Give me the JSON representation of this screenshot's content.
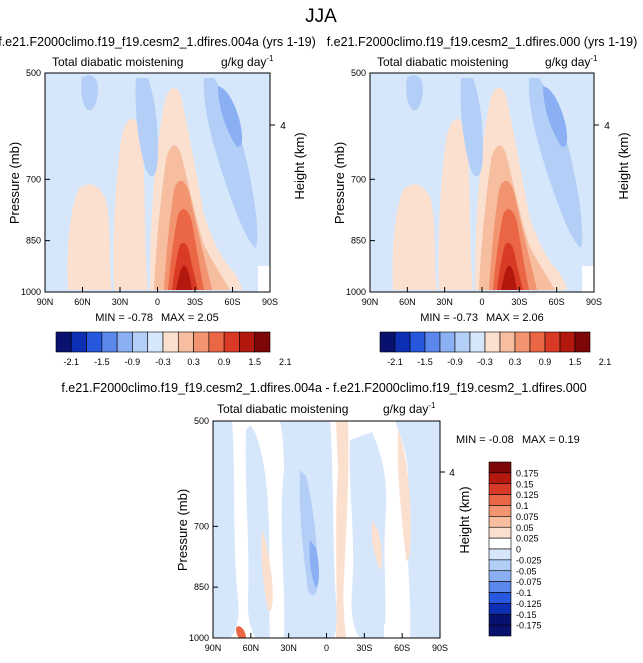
{
  "figure": {
    "main_title": "JJA",
    "colors": {
      "levels_main": [
        "#08126e",
        "#0c2fb4",
        "#2657dc",
        "#5b86ec",
        "#8aaff2",
        "#b3cff7",
        "#d6e7fb",
        "#fbe0d0",
        "#f6bd9f",
        "#f29470",
        "#ea6644",
        "#d83a26",
        "#b3180f",
        "#7d0606"
      ],
      "levels_diff": [
        "#08126e",
        "#0c2fb4",
        "#2657dc",
        "#5b86ec",
        "#8aaff2",
        "#b3cff7",
        "#d6e7fb",
        "#ffffff",
        "#fbe0d0",
        "#f6bd9f",
        "#f29470",
        "#ea6644",
        "#d83a26",
        "#b3180f",
        "#7d0606"
      ]
    }
  },
  "chart_data": [
    {
      "type": "heatmap",
      "title": "f.e21.F2000climo.f19_f19.cesm2_1.dfires.004a (yrs 1-19)",
      "subtitle_left": "Total diabatic moistening",
      "units": "g/kg day",
      "units_exp": "-1",
      "xlabel": "",
      "ylabel": "Pressure (mb)",
      "ylabel_right": "Height (km)",
      "x_ticks": [
        "90N",
        "60N",
        "30N",
        "0",
        "30S",
        "60S",
        "90S"
      ],
      "y_ticks": [
        "500",
        "700",
        "850",
        "1000"
      ],
      "right_ticks": [
        "4"
      ],
      "min_label": "MIN = -0.78",
      "max_label": "MAX = 2.05",
      "colorbar_labels": [
        "-2.1",
        "-1.5",
        "-0.9",
        "-0.3",
        "0.3",
        "0.9",
        "1.5",
        "2.1"
      ],
      "xlim": [
        90,
        -90
      ],
      "ylim_mb": [
        1000,
        500
      ],
      "min": -0.78,
      "max": 2.05
    },
    {
      "type": "heatmap",
      "title": "f.e21.F2000climo.f19_f19.cesm2_1.dfires.000 (yrs 1-19)",
      "subtitle_left": "Total diabatic moistening",
      "units": "g/kg day",
      "units_exp": "-1",
      "xlabel": "",
      "ylabel": "Pressure (mb)",
      "ylabel_right": "Height (km)",
      "x_ticks": [
        "90N",
        "60N",
        "30N",
        "0",
        "30S",
        "60S",
        "90S"
      ],
      "y_ticks": [
        "500",
        "700",
        "850",
        "1000"
      ],
      "right_ticks": [
        "4"
      ],
      "min_label": "MIN = -0.73",
      "max_label": "MAX = 2.06",
      "colorbar_labels": [
        "-2.1",
        "-1.5",
        "-0.9",
        "-0.3",
        "0.3",
        "0.9",
        "1.5",
        "2.1"
      ],
      "xlim": [
        90,
        -90
      ],
      "ylim_mb": [
        1000,
        500
      ],
      "min": -0.73,
      "max": 2.06
    },
    {
      "type": "heatmap",
      "title": "f.e21.F2000climo.f19_f19.cesm2_1.dfires.004a - f.e21.F2000climo.f19_f19.cesm2_1.dfires.000",
      "subtitle_left": "Total diabatic moistening",
      "units": "g/kg day",
      "units_exp": "-1",
      "xlabel": "",
      "ylabel": "Pressure (mb)",
      "ylabel_right": "Height (km)",
      "x_ticks": [
        "90N",
        "60N",
        "30N",
        "0",
        "30S",
        "60S",
        "90S"
      ],
      "y_ticks": [
        "500",
        "700",
        "850",
        "1000"
      ],
      "right_ticks": [
        "4"
      ],
      "min_label": "MIN = -0.08",
      "max_label": "MAX =  0.19",
      "colorbar_labels": [
        "0.175",
        "0.15",
        "0.125",
        "0.1",
        "0.075",
        "0.05",
        "0.025",
        "0",
        "-0.025",
        "-0.05",
        "-0.075",
        "-0.1",
        "-0.125",
        "-0.15",
        "-0.175"
      ],
      "xlim": [
        90,
        -90
      ],
      "ylim_mb": [
        1000,
        500
      ],
      "min": -0.08,
      "max": 0.19
    }
  ]
}
